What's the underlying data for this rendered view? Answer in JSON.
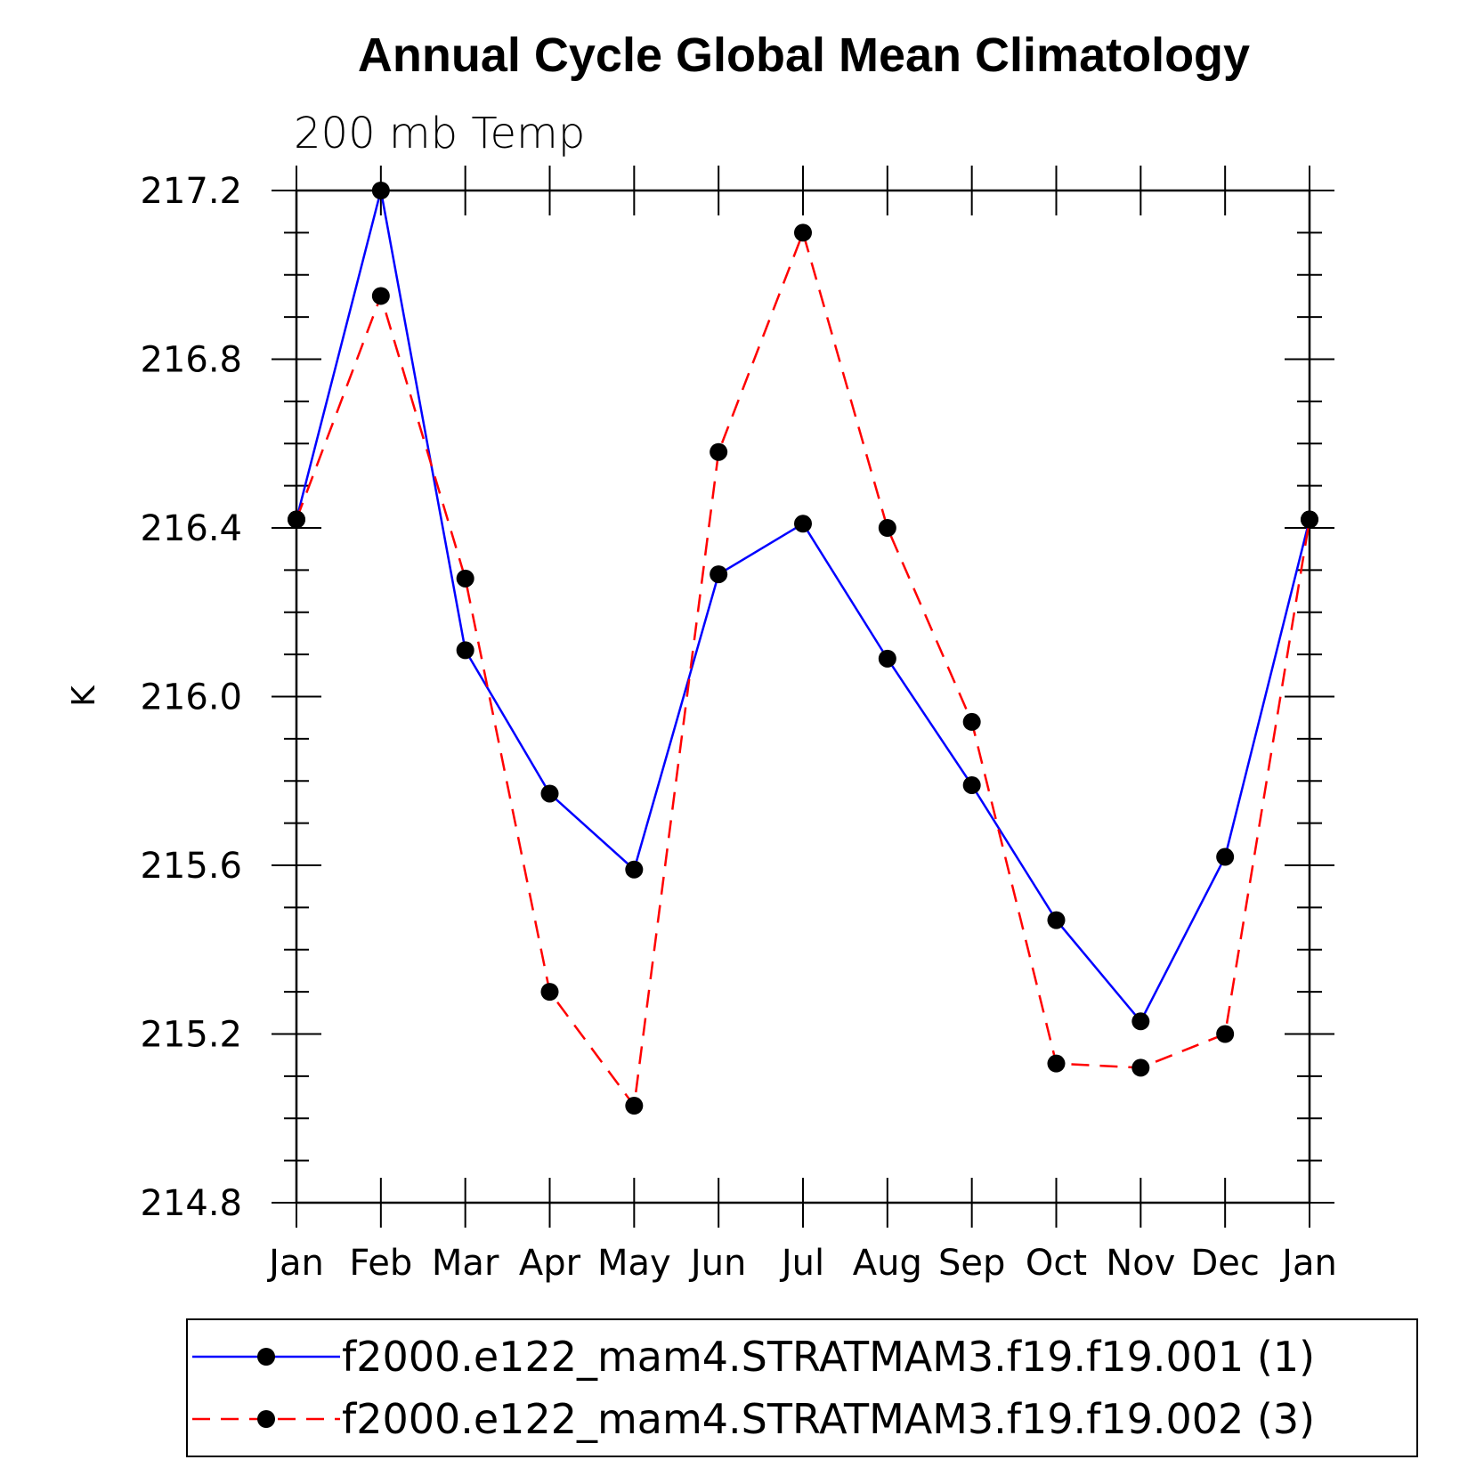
{
  "chart_data": {
    "type": "line",
    "title": "Annual Cycle Global Mean Climatology",
    "subtitle": "200 mb Temp",
    "xlabel": "",
    "ylabel": "K",
    "ylim": [
      214.8,
      217.2
    ],
    "yticks": [
      "214.8",
      "215.2",
      "215.6",
      "216.0",
      "216.4",
      "216.8",
      "217.2"
    ],
    "categories": [
      "Jan",
      "Feb",
      "Mar",
      "Apr",
      "May",
      "Jun",
      "Jul",
      "Aug",
      "Sep",
      "Oct",
      "Nov",
      "Dec",
      "Jan"
    ],
    "series": [
      {
        "name": "f2000.e122_mam4.STRATMAM3.f19.f19.001 (1)",
        "color": "#0000ff",
        "style": "solid",
        "values": [
          216.42,
          217.2,
          216.11,
          215.77,
          215.59,
          216.29,
          216.41,
          216.09,
          215.79,
          215.47,
          215.23,
          215.62,
          216.42
        ]
      },
      {
        "name": "f2000.e122_mam4.STRATMAM3.f19.f19.002 (3)",
        "color": "#ff0000",
        "style": "dashed",
        "values": [
          216.42,
          216.95,
          216.28,
          215.3,
          215.03,
          216.58,
          217.1,
          216.4,
          215.94,
          215.13,
          215.12,
          215.2,
          216.42
        ]
      }
    ],
    "grid": false,
    "legend_position": "bottom"
  }
}
